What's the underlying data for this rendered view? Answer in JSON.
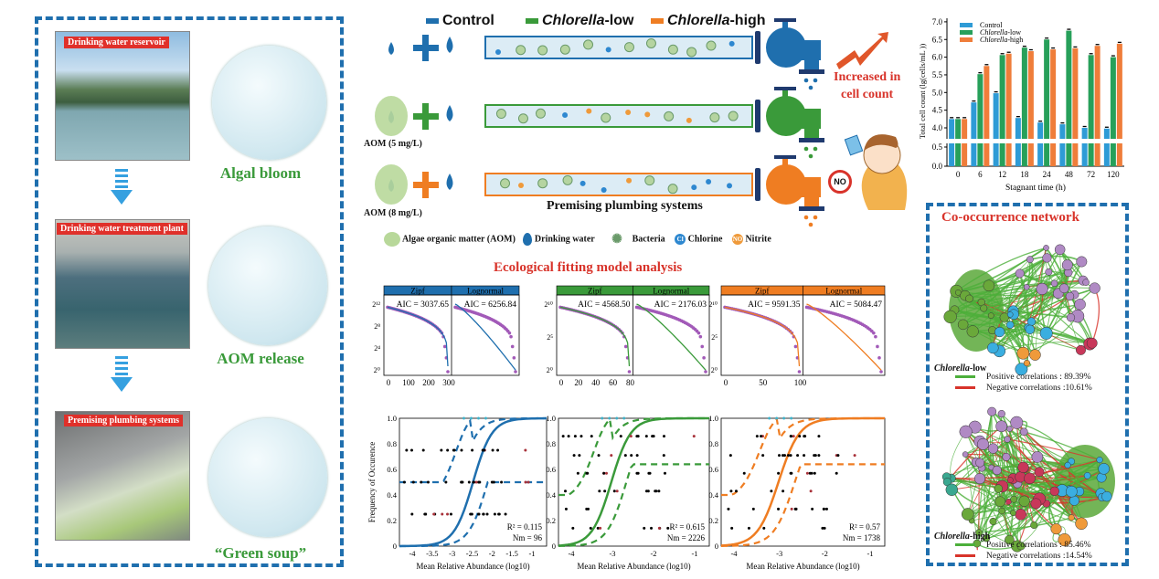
{
  "left_panel": {
    "photos": [
      {
        "label": "Drinking water reservoir",
        "caption": "Algal bloom"
      },
      {
        "label": "Drinking water treatment plant",
        "caption": "AOM release"
      },
      {
        "label": "Premising plumbing systems",
        "caption": "“Green soup”"
      }
    ]
  },
  "pipes": {
    "legend": [
      {
        "label_italic": "",
        "label": "Control",
        "color": "#1f6fae"
      },
      {
        "label_italic": "Chlorella",
        "label": "-low",
        "color": "#3a9a3a"
      },
      {
        "label_italic": "Chlorella",
        "label": "-high",
        "color": "#ef7d22"
      }
    ],
    "rows": [
      {
        "dose": "",
        "color": "#1f6fae"
      },
      {
        "dose": "AOM (5 mg/L)",
        "color": "#3a9a3a"
      },
      {
        "dose": "AOM (8 mg/L)",
        "color": "#ef7d22"
      }
    ],
    "system_label": "Premising plumbing systems",
    "increase_label": [
      "Increased in",
      "cell count"
    ],
    "no_sign": "NO",
    "icon_legend": [
      {
        "icon": "algae-icon",
        "label": "Algae organic matter (AOM)"
      },
      {
        "icon": "water-drop-icon",
        "label": "Drinking water"
      },
      {
        "icon": "bacteria-icon",
        "label": "Bacteria"
      },
      {
        "icon": "chlorine-icon",
        "label": "Chlorine",
        "symbol": "Cl"
      },
      {
        "icon": "nitrite-icon",
        "label": "Nitrite",
        "symbol": "NO"
      }
    ]
  },
  "chart_data": [
    {
      "type": "bar",
      "xlabel": "Stagnant time (h)",
      "ylabel": "Total cell count (lg(cells/mL ))",
      "categories": [
        "0",
        "6",
        "12",
        "18",
        "24",
        "48",
        "72",
        "120"
      ],
      "yticks": [
        "0.0",
        "0.5",
        "4.0",
        "4.5",
        "5.0",
        "5.5",
        "6.0",
        "6.5",
        "7.0"
      ],
      "ylim": [
        0,
        7.0
      ],
      "axis_break": [
        0.5,
        4.0
      ],
      "legend_position": "top-left",
      "series": [
        {
          "name": "Control",
          "color": "#2e9bd6",
          "values": [
            4.25,
            4.72,
            4.98,
            4.28,
            4.15,
            4.1,
            4.0,
            3.98
          ]
        },
        {
          "name": "Chlorella-low",
          "color": "#27a05a",
          "values": [
            4.25,
            5.52,
            6.06,
            6.27,
            6.5,
            6.75,
            6.06,
            6.0
          ]
        },
        {
          "name": "Chlorella-high",
          "color": "#ef7d3a",
          "values": [
            4.25,
            5.75,
            6.1,
            6.17,
            6.22,
            6.25,
            6.32,
            6.38
          ]
        }
      ]
    }
  ],
  "fitting": {
    "title": "Ecological fitting model analysis",
    "panels": [
      {
        "color": "#1f6fae",
        "zipf_label": "Zipf",
        "lognormal_label": "Lognormal",
        "zipf_aic": "AIC = 3037.65",
        "lognormal_aic": "AIC = 6256.84",
        "yticks": [
          "2¹²",
          "2⁸",
          "2⁴",
          "2⁰"
        ],
        "xticks": [
          "0",
          "100",
          "200",
          "300"
        ]
      },
      {
        "color": "#3a9a3a",
        "zipf_label": "Zipf",
        "lognormal_label": "Lognormal",
        "zipf_aic": "AIC = 4568.50",
        "lognormal_aic": "AIC = 2176.03",
        "yticks": [
          "2¹⁰",
          "2⁵",
          "2⁰"
        ],
        "xticks": [
          "0",
          "20",
          "40",
          "60",
          "80"
        ]
      },
      {
        "color": "#ef7d22",
        "zipf_label": "Zipf",
        "lognormal_label": "Lognormal",
        "zipf_aic": "AIC = 9591.35",
        "lognormal_aic": "AIC = 5084.47",
        "yticks": [
          "2¹⁰",
          "2⁵",
          "2⁰"
        ],
        "xticks": [
          "0",
          "50",
          "100"
        ]
      }
    ]
  },
  "neutral": {
    "ylabel": "Frequency of Occurence",
    "xlabel": "Mean Relative Abundance (log10)",
    "yticks": [
      "0",
      "0.2",
      "0.4",
      "0.6",
      "0.8",
      "1.0"
    ],
    "panels": [
      {
        "color": "#1f6fae",
        "r2": "R² = 0.115",
        "nm": "Nm = 96",
        "xticks": [
          "-4",
          "-3.5",
          "-3",
          "-2.5",
          "-2",
          "-1.5",
          "-1"
        ]
      },
      {
        "color": "#3a9a3a",
        "r2": "R² = 0.615",
        "nm": "Nm = 2226",
        "xticks": [
          "-4",
          "-3",
          "-2",
          "-1"
        ]
      },
      {
        "color": "#ef7d22",
        "r2": "R² = 0.57",
        "nm": "Nm = 1738",
        "xticks": [
          "-4",
          "-3",
          "-2",
          "-1"
        ]
      }
    ]
  },
  "network": {
    "title": "Co-occurrence network",
    "groups": [
      {
        "name_italic": "Chlorella",
        "name": "-low",
        "positive": "Positive correlations : 89.39%",
        "negative": "Negative correlations :10.61%"
      },
      {
        "name_italic": "Chlorella",
        "name": "-high",
        "positive": "Positive correlations : 85.46%",
        "negative": "Negative correlations :14.54%"
      }
    ],
    "colors": {
      "positive": "#4caf3a",
      "negative": "#d8332a"
    }
  }
}
